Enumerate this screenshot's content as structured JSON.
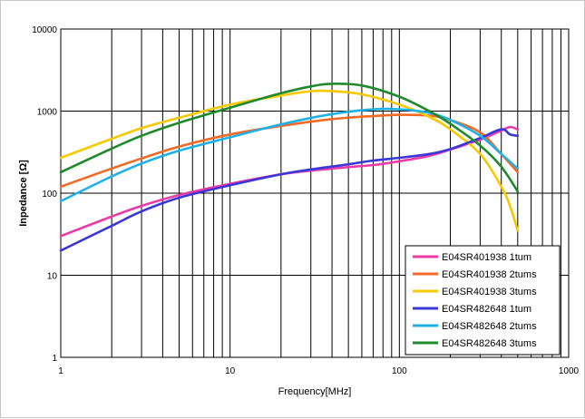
{
  "chart_data": {
    "type": "line",
    "title": "",
    "xlabel": "Frequency[MHz]",
    "ylabel": "Inpedance [Ω]",
    "xscale": "log",
    "yscale": "log",
    "xlim": [
      1,
      1000
    ],
    "ylim": [
      1,
      10000
    ],
    "x_ticks": [
      "1",
      "10",
      "100",
      "1000"
    ],
    "y_ticks": [
      "1",
      "10",
      "100",
      "1000",
      "10000"
    ],
    "grid": true,
    "legend_position": "bottom-right",
    "series": [
      {
        "name": "E04SR401938 1tum",
        "color": "#ec3aa6",
        "points": [
          [
            1,
            30
          ],
          [
            2,
            52
          ],
          [
            3,
            70
          ],
          [
            5,
            95
          ],
          [
            10,
            130
          ],
          [
            20,
            170
          ],
          [
            40,
            200
          ],
          [
            70,
            220
          ],
          [
            100,
            245
          ],
          [
            150,
            285
          ],
          [
            200,
            340
          ],
          [
            300,
            450
          ],
          [
            400,
            580
          ],
          [
            450,
            640
          ],
          [
            500,
            600
          ]
        ]
      },
      {
        "name": "E04SR401938 2tums",
        "color": "#f26a24",
        "points": [
          [
            1,
            120
          ],
          [
            2,
            200
          ],
          [
            3,
            265
          ],
          [
            5,
            370
          ],
          [
            10,
            520
          ],
          [
            20,
            660
          ],
          [
            40,
            800
          ],
          [
            70,
            870
          ],
          [
            100,
            900
          ],
          [
            150,
            880
          ],
          [
            200,
            780
          ],
          [
            300,
            550
          ],
          [
            400,
            300
          ],
          [
            500,
            180
          ]
        ]
      },
      {
        "name": "E04SR401938 3tums",
        "color": "#f8c800",
        "points": [
          [
            1,
            270
          ],
          [
            2,
            460
          ],
          [
            3,
            620
          ],
          [
            5,
            830
          ],
          [
            10,
            1200
          ],
          [
            20,
            1550
          ],
          [
            30,
            1750
          ],
          [
            40,
            1750
          ],
          [
            60,
            1600
          ],
          [
            100,
            1200
          ],
          [
            150,
            850
          ],
          [
            200,
            600
          ],
          [
            300,
            300
          ],
          [
            400,
            120
          ],
          [
            450,
            70
          ],
          [
            500,
            35
          ]
        ]
      },
      {
        "name": "E04SR482648 1tum",
        "color": "#3a37d8",
        "points": [
          [
            1,
            20
          ],
          [
            2,
            40
          ],
          [
            3,
            60
          ],
          [
            5,
            88
          ],
          [
            10,
            125
          ],
          [
            20,
            170
          ],
          [
            30,
            195
          ],
          [
            50,
            225
          ],
          [
            70,
            250
          ],
          [
            100,
            270
          ],
          [
            150,
            300
          ],
          [
            200,
            345
          ],
          [
            300,
            470
          ],
          [
            400,
            600
          ],
          [
            450,
            520
          ],
          [
            500,
            500
          ]
        ]
      },
      {
        "name": "E04SR482648 2tums",
        "color": "#1fb0e8",
        "points": [
          [
            1,
            80
          ],
          [
            2,
            160
          ],
          [
            3,
            230
          ],
          [
            5,
            330
          ],
          [
            10,
            480
          ],
          [
            20,
            690
          ],
          [
            40,
            920
          ],
          [
            70,
            1050
          ],
          [
            100,
            1050
          ],
          [
            150,
            950
          ],
          [
            200,
            780
          ],
          [
            300,
            500
          ],
          [
            400,
            300
          ],
          [
            500,
            200
          ]
        ]
      },
      {
        "name": "E04SR482648 3tums",
        "color": "#1e8a2c",
        "points": [
          [
            1,
            180
          ],
          [
            2,
            350
          ],
          [
            3,
            500
          ],
          [
            5,
            720
          ],
          [
            10,
            1100
          ],
          [
            20,
            1650
          ],
          [
            30,
            2000
          ],
          [
            40,
            2150
          ],
          [
            60,
            2050
          ],
          [
            100,
            1500
          ],
          [
            150,
            1000
          ],
          [
            200,
            700
          ],
          [
            300,
            380
          ],
          [
            400,
            210
          ],
          [
            500,
            105
          ]
        ]
      }
    ]
  }
}
